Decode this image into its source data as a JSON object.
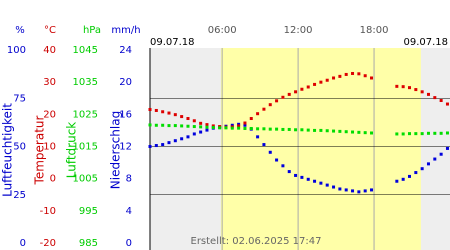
{
  "chart_data": {
    "type": "scatter",
    "date_left": "09.07.18",
    "date_right": "09.07.18",
    "footer": "Erstellt: 02.06.2025 17:47",
    "xlim": [
      0.3,
      24
    ],
    "xticks": [
      {
        "value": 6,
        "label": "06:00"
      },
      {
        "value": 12,
        "label": "12:00"
      },
      {
        "value": 18,
        "label": "18:00"
      }
    ],
    "daylight": [
      5.9,
      21.7
    ],
    "axes": [
      {
        "unit": "%",
        "title": "Luftfeuchtigkeit",
        "color": "#0000cc",
        "ylim": [
          0,
          100
        ],
        "yticks": [
          0,
          25,
          50,
          75,
          100
        ]
      },
      {
        "unit": "°C",
        "title": "Temperatur",
        "color": "#cc0000",
        "ylim": [
          -20,
          40
        ],
        "yticks": [
          -20,
          -10,
          0,
          10,
          20,
          30,
          40
        ]
      },
      {
        "unit": "hPa",
        "title": "Luftdruck",
        "color": "#00cc00",
        "ylim": [
          985,
          1045
        ],
        "yticks": [
          985,
          995,
          1005,
          1015,
          1025,
          1035,
          1045
        ]
      },
      {
        "unit": "mm/h",
        "title": "Niederschlag",
        "color": "#0000cc",
        "ylim": [
          0,
          24
        ],
        "yticks": [
          0,
          4,
          8,
          12,
          16,
          20,
          24
        ]
      }
    ],
    "x": [
      0.3,
      0.8,
      1.3,
      1.8,
      2.3,
      2.8,
      3.3,
      3.8,
      4.3,
      4.8,
      5.3,
      5.8,
      6.3,
      6.8,
      7.3,
      7.8,
      8.3,
      8.8,
      9.3,
      9.8,
      10.3,
      10.8,
      11.3,
      11.8,
      12.3,
      12.8,
      13.3,
      13.8,
      14.3,
      14.8,
      15.3,
      15.8,
      16.3,
      16.8,
      17.3,
      17.8,
      18.3,
      18.8,
      19.3,
      19.8,
      20.3,
      20.8,
      21.3,
      21.8,
      22.3,
      22.8,
      23.3,
      23.8
    ],
    "series": [
      {
        "axis": 0,
        "color": "#0000dd",
        "values": [
          50,
          50.5,
          51,
          52,
          53,
          54,
          55,
          56.5,
          57.5,
          58.5,
          59.5,
          60,
          60.5,
          61,
          61.5,
          61,
          59,
          55,
          51,
          47,
          43,
          40,
          37,
          35,
          34,
          33,
          32,
          31,
          30,
          29,
          28,
          27.5,
          27,
          26.5,
          27,
          27.5,
          null,
          null,
          null,
          32,
          33,
          34.5,
          36.5,
          38.5,
          41,
          43.5,
          46,
          49
        ]
      },
      {
        "axis": 1,
        "color": "#dd0000",
        "values": [
          21.5,
          21.2,
          20.8,
          20.4,
          19.9,
          19.3,
          18.7,
          18.0,
          17.2,
          16.8,
          16.4,
          16.2,
          16.0,
          16.1,
          16.4,
          17.3,
          18.7,
          20.2,
          21.6,
          23.0,
          24.2,
          25.3,
          26.2,
          27.0,
          27.8,
          28.5,
          29.3,
          30.0,
          30.6,
          31.3,
          31.8,
          32.4,
          32.7,
          32.6,
          32.0,
          31.3,
          null,
          null,
          null,
          28.7,
          28.6,
          28.3,
          27.7,
          27.0,
          26.2,
          25.2,
          24.3,
          23.2
        ]
      },
      {
        "axis": 2,
        "color": "#00dd00",
        "values": [
          1021.7,
          1021.6,
          1021.6,
          1021.5,
          1021.5,
          1021.4,
          1021.3,
          1021.2,
          1021.1,
          1021.0,
          1020.9,
          1020.8,
          1020.8,
          1020.7,
          1020.7,
          1020.6,
          1020.6,
          1020.5,
          1020.5,
          1020.4,
          1020.4,
          1020.3,
          1020.3,
          1020.2,
          1020.2,
          1020.1,
          1020.0,
          1020.0,
          1019.9,
          1019.8,
          1019.7,
          1019.6,
          1019.5,
          1019.4,
          1019.3,
          1019.2,
          null,
          null,
          null,
          1018.9,
          1018.9,
          1019.0,
          1019.0,
          1019.0,
          1019.1,
          1019.1,
          1019.1,
          1019.2
        ]
      }
    ]
  }
}
